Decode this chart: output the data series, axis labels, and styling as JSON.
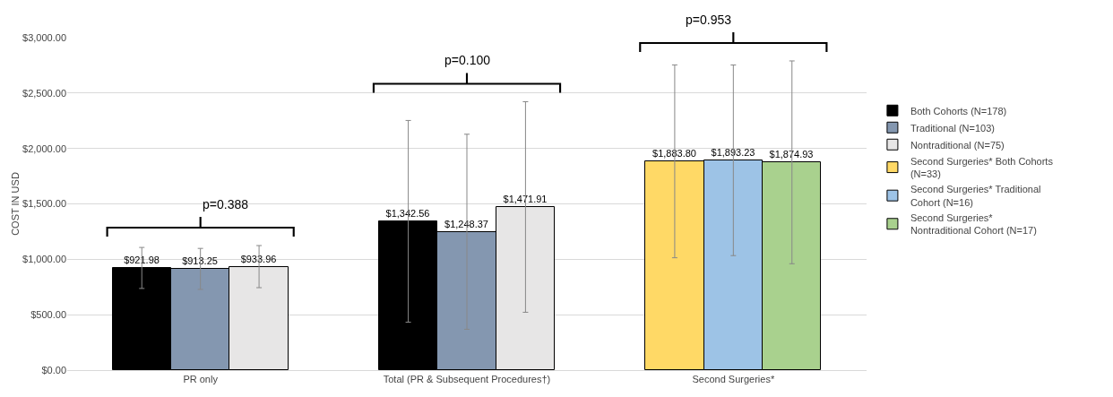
{
  "chart_data": {
    "type": "bar",
    "ylabel": "COST IN USD",
    "categories": [
      "PR only",
      "Total (PR & Subsequent Procedures†)",
      "Second Surgeries*"
    ],
    "series": [
      {
        "name": "Both Cohorts (N=178)",
        "color": "#000000",
        "values": [
          921.98,
          1342.56,
          null
        ],
        "errors": [
          185,
          910,
          null
        ],
        "value_labels": [
          "$921.98",
          "$1,342.56",
          null
        ]
      },
      {
        "name": "Traditional (N=103)",
        "color": "#8497b0",
        "values": [
          913.25,
          1248.37,
          null
        ],
        "errors": [
          185,
          880,
          null
        ],
        "value_labels": [
          "$913.25",
          "$1,248.37",
          null
        ]
      },
      {
        "name": "Nontraditional (N=75)",
        "color": "#e7e6e6",
        "values": [
          933.96,
          1471.91,
          null
        ],
        "errors": [
          190,
          950,
          null
        ],
        "value_labels": [
          "$933.96",
          "$1,471.91",
          null
        ]
      },
      {
        "name": "Second Surgeries* Both Cohorts (N=33)",
        "color": "#ffd966",
        "values": [
          null,
          null,
          1883.8
        ],
        "errors": [
          null,
          null,
          870
        ],
        "value_labels": [
          null,
          null,
          "$1,883.80"
        ]
      },
      {
        "name": "Second Surgeries* Traditional Cohort (N=16)",
        "color": "#9dc3e6",
        "values": [
          null,
          null,
          1893.23
        ],
        "errors": [
          null,
          null,
          860
        ],
        "value_labels": [
          null,
          null,
          "$1,893.23"
        ]
      },
      {
        "name": "Second Surgeries* Nontraditional Cohort (N=17)",
        "color": "#a9d18e",
        "values": [
          null,
          null,
          1874.93
        ],
        "errors": [
          null,
          null,
          915
        ],
        "value_labels": [
          null,
          null,
          "$1,874.93"
        ]
      }
    ],
    "ylim": [
      0,
      3000
    ],
    "yticks": [
      {
        "value": 0,
        "label": "$0.00"
      },
      {
        "value": 500,
        "label": "$500.00"
      },
      {
        "value": 1000,
        "label": "$1,000.00"
      },
      {
        "value": 1500,
        "label": "$1,500.00"
      },
      {
        "value": 2000,
        "label": "$2,000.00"
      },
      {
        "value": 2500,
        "label": "$2,500.00"
      },
      {
        "value": 3000,
        "label": "$3,000.00"
      }
    ],
    "annotations": [
      "p=0.388",
      "p=0.100",
      "p=0.953"
    ],
    "grid": "y",
    "legend": "right"
  }
}
